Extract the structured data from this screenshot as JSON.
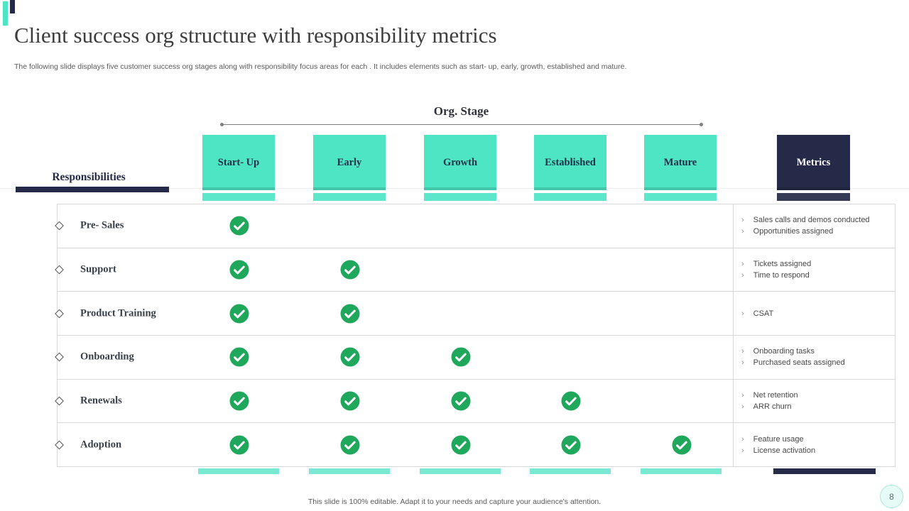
{
  "slide": {
    "title": "Client success org structure with responsibility metrics",
    "subtitle": "The following slide displays five customer success org stages along with responsibility focus areas for each . It includes elements such as start- up, early, growth, established and mature.",
    "footer": "This slide is 100% editable.  Adapt it to your needs and capture your audience's attention.",
    "page_number": "8"
  },
  "matrix": {
    "org_stage_label": "Org. Stage",
    "responsibilities_label": "Responsibilities",
    "stages": [
      "Start- Up",
      "Early",
      "Growth",
      "Established",
      "Mature"
    ],
    "metrics_header": "Metrics",
    "rows": [
      {
        "label": "Pre- Sales",
        "checks": [
          true,
          false,
          false,
          false,
          false
        ],
        "metrics": [
          "Sales calls and demos conducted",
          "Opportunities assigned"
        ]
      },
      {
        "label": "Support",
        "checks": [
          true,
          true,
          false,
          false,
          false
        ],
        "metrics": [
          "Tickets assigned",
          "Time to respond"
        ]
      },
      {
        "label": "Product Training",
        "checks": [
          true,
          true,
          false,
          false,
          false
        ],
        "metrics": [
          "CSAT"
        ]
      },
      {
        "label": "Onboarding",
        "checks": [
          true,
          true,
          true,
          false,
          false
        ],
        "metrics": [
          "Onboarding tasks",
          "Purchased seats assigned"
        ]
      },
      {
        "label": "Renewals",
        "checks": [
          true,
          true,
          true,
          true,
          false
        ],
        "metrics": [
          "Net retention",
          "ARR churn"
        ]
      },
      {
        "label": "Adoption",
        "checks": [
          true,
          true,
          true,
          true,
          true
        ],
        "metrics": [
          "Feature usage",
          "License activation"
        ]
      }
    ]
  },
  "colors": {
    "teal": "#4EE5C5",
    "teal_light": "#79E9D3",
    "navy": "#242A47",
    "check_green": "#1FA85C",
    "border_gray": "#D8D8D8"
  }
}
